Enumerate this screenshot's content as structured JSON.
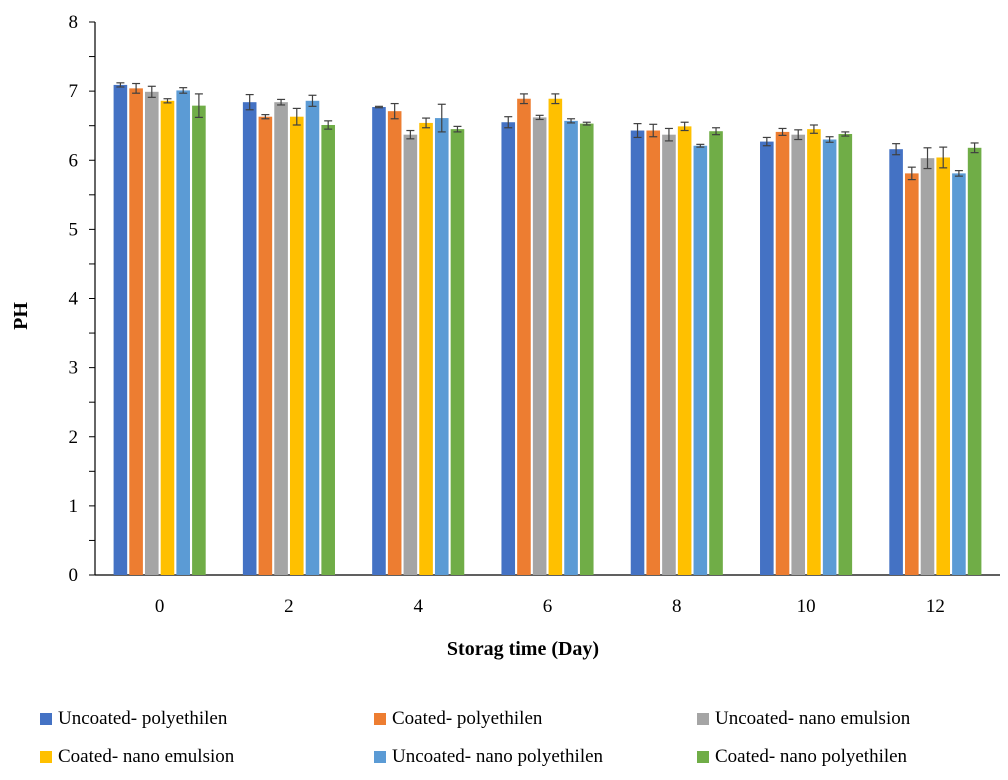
{
  "chart_data": {
    "type": "bar",
    "title": "",
    "xlabel": "Storag time (Day)",
    "ylabel": "PH",
    "ylim": [
      0,
      8
    ],
    "yticks": [
      "0",
      "1",
      "2",
      "3",
      "4",
      "5",
      "6",
      "7",
      "8"
    ],
    "categories": [
      "0",
      "2",
      "4",
      "6",
      "8",
      "10",
      "12"
    ],
    "grid": false,
    "legend_position": "bottom",
    "series": [
      {
        "name": "Uncoated- polyethilen",
        "color": "#4472C4",
        "values": [
          7.09,
          6.84,
          6.77,
          6.55,
          6.43,
          6.27,
          6.16
        ],
        "errors": [
          0.03,
          0.11,
          0.01,
          0.08,
          0.1,
          0.06,
          0.08
        ]
      },
      {
        "name": "Coated- polyethilen",
        "color": "#ED7D31",
        "values": [
          7.04,
          6.63,
          6.71,
          6.89,
          6.43,
          6.41,
          5.81
        ],
        "errors": [
          0.07,
          0.03,
          0.11,
          0.07,
          0.09,
          0.05,
          0.09
        ]
      },
      {
        "name": "Uncoated- nano emulsion",
        "color": "#A5A5A5",
        "values": [
          6.99,
          6.84,
          6.37,
          6.62,
          6.37,
          6.37,
          6.03
        ],
        "errors": [
          0.08,
          0.04,
          0.06,
          0.03,
          0.09,
          0.07,
          0.15
        ]
      },
      {
        "name": "Coated- nano emulsion",
        "color": "#FFC000",
        "values": [
          6.86,
          6.63,
          6.54,
          6.89,
          6.49,
          6.45,
          6.04
        ],
        "errors": [
          0.03,
          0.12,
          0.07,
          0.07,
          0.06,
          0.06,
          0.15
        ]
      },
      {
        "name": "Uncoated- nano polyethilen",
        "color": "#5B9BD5",
        "values": [
          7.01,
          6.86,
          6.61,
          6.57,
          6.21,
          6.3,
          5.81
        ],
        "errors": [
          0.04,
          0.08,
          0.2,
          0.03,
          0.02,
          0.04,
          0.04
        ]
      },
      {
        "name": "Coated- nano polyethilen",
        "color": "#70AD47",
        "values": [
          6.79,
          6.51,
          6.45,
          6.53,
          6.42,
          6.38,
          6.18
        ],
        "errors": [
          0.17,
          0.06,
          0.04,
          0.02,
          0.05,
          0.03,
          0.07
        ]
      }
    ]
  }
}
